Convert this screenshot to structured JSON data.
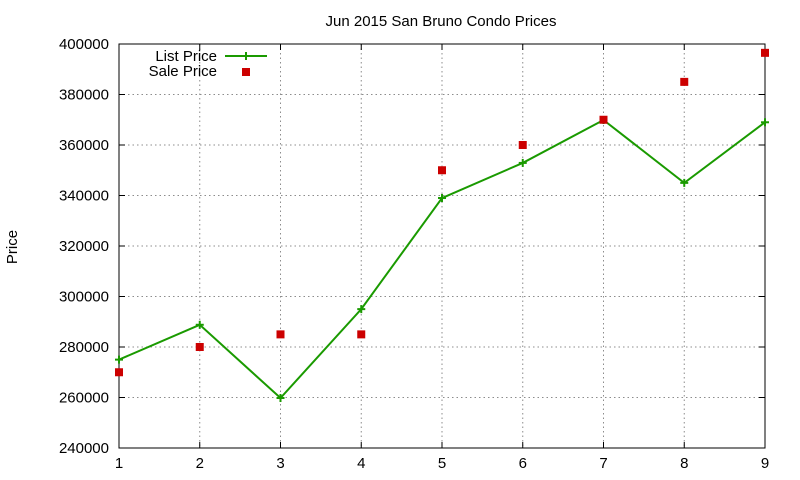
{
  "chart_data": {
    "type": "line",
    "title": "Jun 2015 San Bruno Condo Prices",
    "xlabel": "",
    "ylabel": "Price",
    "x": [
      1,
      2,
      3,
      4,
      5,
      6,
      7,
      8,
      9
    ],
    "xlim": [
      1,
      9
    ],
    "ylim": [
      240000,
      400000
    ],
    "yticks": [
      240000,
      260000,
      280000,
      300000,
      320000,
      340000,
      360000,
      380000,
      400000
    ],
    "grid": true,
    "legend_position": "top-left",
    "series": [
      {
        "name": "List Price",
        "style": "linespoints",
        "marker": "plus",
        "color": "#1a9a00",
        "values": [
          275000,
          288800,
          259800,
          295000,
          339000,
          352900,
          369900,
          345000,
          369000
        ]
      },
      {
        "name": "Sale Price",
        "style": "points",
        "marker": "square",
        "color": "#cc0000",
        "values": [
          270000,
          280000,
          285000,
          285000,
          350000,
          360000,
          370000,
          385000,
          396500
        ]
      }
    ]
  }
}
